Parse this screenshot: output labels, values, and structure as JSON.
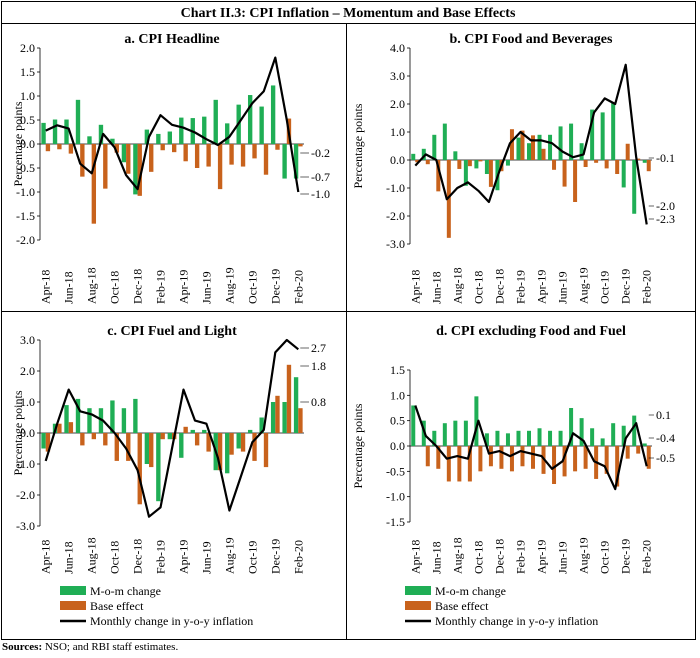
{
  "title": "Chart II.3: CPI Inflation – Momentum and Base Effects",
  "source_label": "Sources:",
  "source_text": "NSO; and RBI staff estimates.",
  "colors": {
    "mom": "#1fae55",
    "base": "#c8621c",
    "line": "#000000"
  },
  "legend": [
    "M-o-m change",
    "Base effect",
    "Monthly change in y-o-y inflation"
  ],
  "chart_data": [
    {
      "type": "bar",
      "title": "a. CPI Headline",
      "ylabel": "Percentage points",
      "ylim": [
        -2.0,
        2.0
      ],
      "yticks": [
        "2.0",
        "1.5",
        "1.0",
        "0.5",
        "0.0",
        "-0.5",
        "-1.0",
        "-1.5",
        "-2.0"
      ],
      "categories": [
        "Apr-18",
        "May-18",
        "Jun-18",
        "Jul-18",
        "Aug-18",
        "Sep-18",
        "Oct-18",
        "Nov-18",
        "Dec-18",
        "Jan-19",
        "Feb-19",
        "Mar-19",
        "Apr-19",
        "May-19",
        "Jun-19",
        "Jul-19",
        "Aug-19",
        "Sep-19",
        "Oct-19",
        "Nov-19",
        "Dec-19",
        "Jan-20",
        "Feb-20"
      ],
      "xtick_labels": [
        "Apr-18",
        "Jun-18",
        "Aug-18",
        "Oct-18",
        "Dec-18",
        "Feb-19",
        "Apr-19",
        "Jun-19",
        "Aug-19",
        "Oct-19",
        "Dec-19",
        "Feb-20"
      ],
      "series": [
        {
          "name": "M-o-m change",
          "values": [
            0.44,
            0.51,
            0.51,
            0.92,
            0.16,
            0.4,
            0.11,
            -0.38,
            -1.05,
            0.3,
            0.21,
            0.26,
            0.55,
            0.54,
            0.57,
            0.92,
            0.43,
            0.82,
            1.02,
            0.78,
            1.22,
            -0.72,
            -0.72
          ]
        },
        {
          "name": "Base effect",
          "values": [
            -0.15,
            -0.11,
            -0.2,
            -0.68,
            -1.66,
            -0.93,
            -0.18,
            -0.62,
            -1.08,
            -0.58,
            -0.13,
            -0.17,
            -0.36,
            -0.5,
            -0.47,
            -0.94,
            -0.43,
            -0.47,
            -0.3,
            -0.64,
            -0.12,
            0.53,
            -0.05
          ]
        },
        {
          "name": "Monthly change in y-o-y inflation",
          "values": [
            0.28,
            0.39,
            0.32,
            -0.41,
            -0.61,
            0.21,
            -0.07,
            -0.65,
            -0.94,
            0.15,
            0.6,
            0.4,
            0.34,
            0.24,
            0.1,
            -0.02,
            0.15,
            0.5,
            0.85,
            1.1,
            1.8,
            0.5,
            -1.0
          ]
        }
      ],
      "annotations": [
        "-0.2",
        "-0.7",
        "-1.0"
      ]
    },
    {
      "type": "bar",
      "title": "b. CPI  Food and Beverages",
      "ylabel": "Percentage points",
      "ylim": [
        -3.0,
        4.0
      ],
      "yticks": [
        "4.0",
        "3.0",
        "2.0",
        "1.0",
        "0.0",
        "-1.0",
        "-2.0",
        "-3.0"
      ],
      "categories": [
        "Apr-18",
        "May-18",
        "Jun-18",
        "Jul-18",
        "Aug-18",
        "Sep-18",
        "Oct-18",
        "Nov-18",
        "Dec-18",
        "Jan-19",
        "Feb-19",
        "Mar-19",
        "Apr-19",
        "May-19",
        "Jun-19",
        "Jul-19",
        "Aug-19",
        "Sep-19",
        "Oct-19",
        "Nov-19",
        "Dec-19",
        "Jan-20",
        "Feb-20"
      ],
      "xtick_labels": [
        "Apr-18",
        "Jun-18",
        "Aug-18",
        "Oct-18",
        "Dec-18",
        "Feb-19",
        "Apr-19",
        "Jun-19",
        "Aug-19",
        "Oct-19",
        "Dec-19",
        "Feb-20"
      ],
      "series": [
        {
          "name": "M-o-m change",
          "values": [
            0.22,
            0.4,
            0.9,
            1.3,
            0.31,
            -0.92,
            -0.3,
            -0.5,
            -1.08,
            -0.2,
            0.8,
            0.6,
            0.9,
            0.9,
            1.2,
            1.3,
            0.6,
            1.8,
            1.7,
            2.05,
            -0.98,
            -1.92,
            -0.1
          ]
        },
        {
          "name": "Base effect",
          "values": [
            -0.08,
            -0.15,
            -1.12,
            -2.78,
            -0.32,
            -0.22,
            -0.05,
            -0.96,
            -0.4,
            1.1,
            1.05,
            0.88,
            0.4,
            -0.35,
            -0.95,
            -1.5,
            -0.25,
            -0.1,
            -0.3,
            -0.5,
            0.58,
            0.05,
            -0.4
          ]
        },
        {
          "name": "Monthly change in y-o-y inflation",
          "values": [
            -0.2,
            0.2,
            0.0,
            -1.4,
            -1.0,
            -0.8,
            -1.1,
            -1.5,
            -0.4,
            0.6,
            1.0,
            0.7,
            0.7,
            0.6,
            0.3,
            0.1,
            0.2,
            1.7,
            2.2,
            2.0,
            3.4,
            0.1,
            -2.3
          ]
        }
      ],
      "annotations": [
        "-0.1",
        "-2.0",
        "-2.3"
      ]
    },
    {
      "type": "bar",
      "title": "c. CPI  Fuel and Light",
      "ylabel": "Percentage points",
      "ylim": [
        -3.0,
        3.0
      ],
      "yticks": [
        "3.0",
        "2.0",
        "1.0",
        "0.0",
        "-1.0",
        "-2.0",
        "-3.0"
      ],
      "categories": [
        "Apr-18",
        "May-18",
        "Jun-18",
        "Jul-18",
        "Aug-18",
        "Sep-18",
        "Oct-18",
        "Nov-18",
        "Dec-18",
        "Jan-19",
        "Feb-19",
        "Mar-19",
        "Apr-19",
        "May-19",
        "Jun-19",
        "Jul-19",
        "Aug-19",
        "Sep-19",
        "Oct-19",
        "Nov-19",
        "Dec-19",
        "Jan-20",
        "Feb-20"
      ],
      "xtick_labels": [
        "Apr-18",
        "Jun-18",
        "Aug-18",
        "Oct-18",
        "Dec-18",
        "Feb-19",
        "Apr-19",
        "Jun-19",
        "Aug-19",
        "Oct-19",
        "Dec-19",
        "Feb-20"
      ],
      "series": [
        {
          "name": "M-o-m change",
          "values": [
            -0.5,
            0.3,
            0.9,
            1.1,
            0.8,
            0.8,
            1.05,
            0.8,
            1.1,
            -1.0,
            -2.2,
            -0.2,
            -0.8,
            0.1,
            0.1,
            -1.2,
            -1.3,
            -0.5,
            0.1,
            0.5,
            1.0,
            1.0,
            1.8
          ]
        },
        {
          "name": "Base effect",
          "values": [
            -0.6,
            0.3,
            0.35,
            -0.4,
            -0.2,
            -0.4,
            -0.9,
            -0.9,
            -2.3,
            -1.1,
            -0.2,
            -0.2,
            0.2,
            -0.4,
            -0.6,
            -1.2,
            -0.7,
            -0.6,
            -0.9,
            -1.1,
            1.2,
            2.2,
            0.8
          ]
        },
        {
          "name": "Monthly change in y-o-y inflation",
          "values": [
            -0.9,
            0.3,
            1.4,
            0.7,
            0.6,
            0.4,
            0.0,
            -0.5,
            -1.2,
            -2.7,
            -2.4,
            -0.5,
            1.4,
            0.4,
            0.3,
            -0.8,
            -2.5,
            -1.4,
            -0.3,
            0.1,
            2.6,
            3.0,
            2.7
          ]
        }
      ],
      "annotations": [
        "2.7",
        "1.8",
        "0.8"
      ]
    },
    {
      "type": "bar",
      "title": "d. CPI excluding Food and Fuel",
      "ylabel": "Percentage points",
      "ylim": [
        -1.5,
        1.5
      ],
      "yticks": [
        "1.5",
        "1.0",
        "0.5",
        "0.0",
        "-0.5",
        "-1.0",
        "-1.5"
      ],
      "categories": [
        "Apr-18",
        "May-18",
        "Jun-18",
        "Jul-18",
        "Aug-18",
        "Sep-18",
        "Oct-18",
        "Nov-18",
        "Dec-18",
        "Jan-19",
        "Feb-19",
        "Mar-19",
        "Apr-19",
        "May-19",
        "Jun-19",
        "Jul-19",
        "Aug-19",
        "Sep-19",
        "Oct-19",
        "Nov-19",
        "Dec-19",
        "Jan-20",
        "Feb-20"
      ],
      "xtick_labels": [
        "Apr-18",
        "Jun-18",
        "Aug-18",
        "Oct-18",
        "Dec-18",
        "Feb-19",
        "Apr-19",
        "Jun-19",
        "Aug-19",
        "Oct-19",
        "Dec-19",
        "Feb-20"
      ],
      "series": [
        {
          "name": "M-o-m change",
          "values": [
            0.8,
            0.5,
            0.3,
            0.45,
            0.5,
            0.5,
            0.98,
            0.25,
            0.3,
            0.25,
            0.3,
            0.3,
            0.35,
            0.3,
            0.3,
            0.75,
            0.55,
            0.35,
            0.15,
            0.45,
            0.4,
            0.6,
            0.05
          ]
        },
        {
          "name": "Base effect",
          "values": [
            0.0,
            -0.4,
            -0.45,
            -0.7,
            -0.7,
            -0.7,
            -0.5,
            -0.4,
            -0.45,
            -0.5,
            -0.4,
            -0.45,
            -0.55,
            -0.75,
            -0.6,
            -0.5,
            -0.45,
            -0.65,
            -0.55,
            -0.8,
            -0.25,
            -0.15,
            -0.45
          ]
        },
        {
          "name": "Monthly change in y-o-y inflation",
          "values": [
            0.8,
            0.2,
            0.0,
            -0.25,
            -0.2,
            -0.25,
            0.5,
            -0.15,
            -0.1,
            -0.2,
            -0.1,
            -0.15,
            -0.2,
            -0.45,
            -0.3,
            0.25,
            0.1,
            -0.3,
            -0.4,
            -0.85,
            0.15,
            0.45,
            -0.4
          ]
        }
      ],
      "annotations": [
        "0.1",
        "-0.4",
        "-0.5"
      ]
    }
  ]
}
